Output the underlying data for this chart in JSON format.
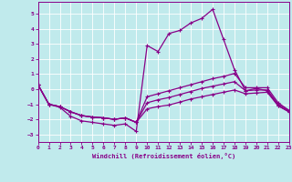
{
  "xlabel": "Windchill (Refroidissement éolien,°C)",
  "xlim": [
    0,
    23
  ],
  "ylim": [
    -3.5,
    5.8
  ],
  "yticks": [
    -3,
    -2,
    -1,
    0,
    1,
    2,
    3,
    4,
    5
  ],
  "xticks": [
    0,
    1,
    2,
    3,
    4,
    5,
    6,
    7,
    8,
    9,
    10,
    11,
    12,
    13,
    14,
    15,
    16,
    17,
    18,
    19,
    20,
    21,
    22,
    23
  ],
  "background_color": "#c0eaec",
  "grid_color": "#d8f0f2",
  "line_color": "#880088",
  "series1_x": [
    0,
    1,
    2,
    3,
    4,
    5,
    6,
    7,
    8,
    9,
    10,
    11,
    12,
    13,
    14,
    15,
    16,
    17,
    18,
    19,
    20,
    21,
    22,
    23
  ],
  "series1_y": [
    0.3,
    -1.0,
    -1.2,
    -1.8,
    -2.1,
    -2.2,
    -2.3,
    -2.4,
    -2.3,
    -2.8,
    2.9,
    2.5,
    3.7,
    3.9,
    4.4,
    4.7,
    5.3,
    3.3,
    1.3,
    -0.1,
    0.05,
    -0.1,
    -1.1,
    -1.5
  ],
  "series2_x": [
    0,
    1,
    2,
    3,
    4,
    5,
    6,
    7,
    8,
    9,
    10,
    11,
    12,
    13,
    14,
    15,
    16,
    17,
    18,
    19,
    20,
    21,
    22,
    23
  ],
  "series2_y": [
    0.3,
    -1.0,
    -1.15,
    -1.5,
    -1.75,
    -1.85,
    -1.9,
    -2.0,
    -1.9,
    -2.2,
    -0.5,
    -0.3,
    -0.1,
    0.1,
    0.3,
    0.5,
    0.7,
    0.85,
    1.05,
    0.1,
    0.1,
    0.1,
    -0.9,
    -1.4
  ],
  "series3_x": [
    0,
    1,
    2,
    3,
    4,
    5,
    6,
    7,
    8,
    9,
    10,
    11,
    12,
    13,
    14,
    15,
    16,
    17,
    18,
    19,
    20,
    21,
    22,
    23
  ],
  "series3_y": [
    0.3,
    -1.0,
    -1.15,
    -1.5,
    -1.75,
    -1.85,
    -1.9,
    -2.0,
    -1.9,
    -2.2,
    -0.9,
    -0.7,
    -0.55,
    -0.35,
    -0.15,
    0.05,
    0.2,
    0.35,
    0.5,
    -0.1,
    -0.05,
    -0.05,
    -1.0,
    -1.45
  ],
  "series4_x": [
    0,
    1,
    2,
    3,
    4,
    5,
    6,
    7,
    8,
    9,
    10,
    11,
    12,
    13,
    14,
    15,
    16,
    17,
    18,
    19,
    20,
    21,
    22,
    23
  ],
  "series4_y": [
    0.3,
    -1.0,
    -1.15,
    -1.5,
    -1.75,
    -1.85,
    -1.9,
    -2.0,
    -1.9,
    -2.2,
    -1.3,
    -1.15,
    -1.05,
    -0.85,
    -0.65,
    -0.5,
    -0.35,
    -0.2,
    -0.05,
    -0.3,
    -0.25,
    -0.2,
    -1.1,
    -1.5
  ]
}
